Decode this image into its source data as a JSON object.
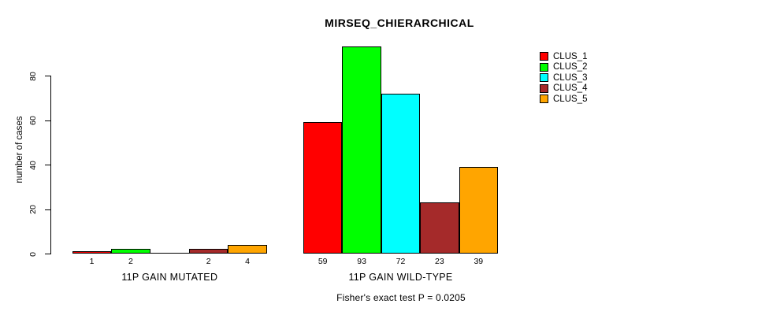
{
  "chart_data": {
    "type": "bar",
    "title": "MIRSEQ_CHIERARCHICAL",
    "ylabel": "number of cases",
    "xlabel": "",
    "ylim": [
      0,
      93
    ],
    "yticks": [
      0,
      20,
      40,
      60,
      80
    ],
    "grid": false,
    "legend_position": "top-right",
    "bar_border_color": "#000000",
    "background_color": "#FFFFFF",
    "categories": [
      "11P GAIN MUTATED",
      "11P GAIN WILD-TYPE"
    ],
    "series": [
      {
        "name": "CLUS_1",
        "color": "#FF0000",
        "values": [
          1,
          59
        ]
      },
      {
        "name": "CLUS_2",
        "color": "#00FF00",
        "values": [
          2,
          93
        ]
      },
      {
        "name": "CLUS_3",
        "color": "#00FFFF",
        "values": [
          0,
          72
        ]
      },
      {
        "name": "CLUS_4",
        "color": "#A52A2A",
        "values": [
          2,
          23
        ]
      },
      {
        "name": "CLUS_5",
        "color": "#FFA500",
        "values": [
          4,
          39
        ]
      }
    ],
    "bar_value_labels": [
      [
        "1",
        "2",
        "",
        "2",
        "4"
      ],
      [
        "59",
        "93",
        "72",
        "23",
        "39"
      ]
    ],
    "annotation": "Fisher's exact test P = 0.0205"
  }
}
